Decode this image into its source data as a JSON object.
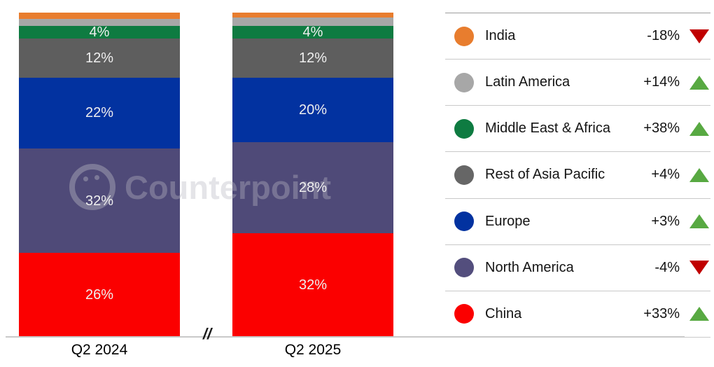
{
  "watermark": {
    "text": "Counterpoint"
  },
  "chart_data": {
    "type": "bar",
    "stacked": true,
    "unit": "percent share",
    "title": "",
    "xlabel": "",
    "ylabel": "",
    "ylim": [
      0,
      100
    ],
    "grid": false,
    "axis_break_marker": "//",
    "categories": [
      "Q2 2024",
      "Q2 2025"
    ],
    "series_order": "top-to-bottom",
    "series": [
      {
        "name": "India",
        "color": "#e87d2e",
        "values": [
          2,
          1.5
        ],
        "labels": [
          "",
          ""
        ]
      },
      {
        "name": "Latin America",
        "color": "#a7a7a7",
        "values": [
          2,
          2.5
        ],
        "labels": [
          "",
          ""
        ]
      },
      {
        "name": "Middle East & Africa",
        "color": "#0e7b41",
        "values": [
          4,
          4
        ],
        "labels": [
          "4%",
          "4%"
        ]
      },
      {
        "name": "Rest of Asia Pacific",
        "color": "#5e5e5e",
        "values": [
          12,
          12
        ],
        "labels": [
          "12%",
          "12%"
        ]
      },
      {
        "name": "Europe",
        "color": "#0232a0",
        "values": [
          22,
          20
        ],
        "labels": [
          "22%",
          "20%"
        ]
      },
      {
        "name": "North America",
        "color": "#4f4a78",
        "values": [
          32,
          28
        ],
        "labels": [
          "32%",
          "28%"
        ]
      },
      {
        "name": "China",
        "color": "#fb0000",
        "values": [
          26,
          32
        ],
        "labels": [
          "26%",
          "32%"
        ]
      }
    ]
  },
  "legend": {
    "position": "right",
    "up_color": "#58a942",
    "down_color": "#c00000",
    "items": [
      {
        "name": "India",
        "color": "#e87d2e",
        "change": "-18%",
        "direction": "down"
      },
      {
        "name": "Latin America",
        "color": "#a7a7a7",
        "change": "+14%",
        "direction": "up"
      },
      {
        "name": "Middle East & Africa",
        "color": "#0e7b41",
        "change": "+38%",
        "direction": "up"
      },
      {
        "name": "Rest of Asia Pacific",
        "color": "#666666",
        "change": "+4%",
        "direction": "up"
      },
      {
        "name": "Europe",
        "color": "#0232a0",
        "change": "+3%",
        "direction": "up"
      },
      {
        "name": "North America",
        "color": "#534e7d",
        "change": "-4%",
        "direction": "down"
      },
      {
        "name": "China",
        "color": "#fb0000",
        "change": "+33%",
        "direction": "up"
      }
    ]
  }
}
